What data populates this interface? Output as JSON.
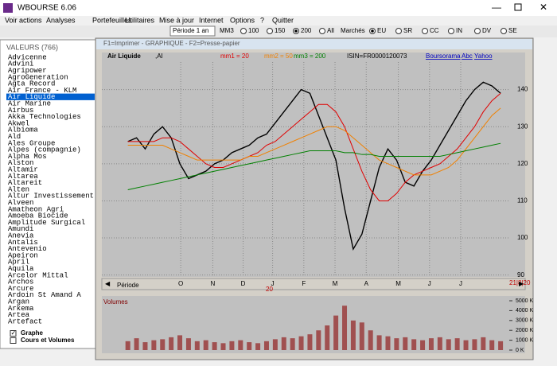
{
  "window": {
    "title": "WBOURSE 6.06"
  },
  "menu": [
    "Voir actions",
    "Analyses",
    "Portefeuilles",
    "Utilitaires",
    "Mise à jour",
    "Internet",
    "Options",
    "?",
    "Quitter"
  ],
  "toolbar": {
    "period": "Période 1 an",
    "mm_label": "MM3",
    "mm_options": [
      "100",
      "150",
      "200",
      "All"
    ],
    "mm_selected": 2,
    "market_label": "Marchés",
    "market_options": [
      "EU",
      "SR",
      "CC",
      "IN",
      "DV",
      "SE"
    ],
    "market_selected": 0
  },
  "sidebar": {
    "title": "VALEURS",
    "count": "(766)",
    "selected": 6,
    "items": [
      "Advicenne",
      "Advini",
      "Agripower",
      "AgroGeneration",
      "Agta Record",
      "Air France - KLM",
      "Air Liquide",
      "Air Marine",
      "Airbus",
      "Akka Technologies",
      "Akwel",
      "Albioma",
      "Ald",
      "Ales Groupe",
      "Alpes (compagnie)",
      "Alpha Mos",
      "Alston",
      "Altamir",
      "Altarea",
      "Altareit",
      "Alten",
      "Altur Investissement",
      "Alveen",
      "Amatheon Agri",
      "Amoeba Biocide",
      "Amplitude Surgical",
      "Amundi",
      "Anevia",
      "Antalis",
      "Antevenio",
      "Apeiron",
      "April",
      "Aquila",
      "Arcelor Mittal",
      "Archos",
      "Arcure",
      "Ardoin St Amand A",
      "Argan",
      "Arkema",
      "Artea",
      "Artefact"
    ],
    "checkboxes": [
      {
        "label": "Graphe",
        "checked": true
      },
      {
        "label": "Cours et Volumes",
        "checked": false
      }
    ]
  },
  "chart_window": {
    "title": "F1=Imprimer  -  GRAPHIQUE  -  F2=Presse-papier",
    "period_label": "Période",
    "date_label": "21|8|20",
    "year_label": "20"
  },
  "chart_data": [
    {
      "type": "line",
      "title": "Air Liquide",
      "ticker": ",AI",
      "isin": "ISIN=FR0000120073",
      "links": [
        "Boursorama",
        "Abc",
        "Yahoo"
      ],
      "xlim": [
        -3,
        44
      ],
      "xticks": [
        {
          "value": 6.1,
          "label": "O"
        },
        {
          "value": 9.8,
          "label": "N"
        },
        {
          "value": 13.3,
          "label": "D"
        },
        {
          "value": 16.7,
          "label": "J"
        },
        {
          "value": 20.3,
          "label": "F"
        },
        {
          "value": 23.9,
          "label": "M"
        },
        {
          "value": 27.5,
          "label": "A"
        },
        {
          "value": 31.2,
          "label": "M"
        },
        {
          "value": 34.8,
          "label": "J"
        },
        {
          "value": 38.4,
          "label": "J"
        }
      ],
      "ylim": [
        89.5,
        150
      ],
      "yticks": [
        90,
        100,
        110,
        120,
        130,
        140
      ],
      "grid": true,
      "series": [
        {
          "color": "#000000",
          "values": [
            126,
            127,
            124,
            128,
            130,
            127,
            120,
            116,
            117,
            118,
            120,
            121,
            123,
            124,
            125,
            127,
            128,
            131,
            134,
            137,
            140,
            139,
            133,
            127,
            121,
            108,
            97,
            101,
            110,
            119,
            124,
            121,
            115,
            114,
            118,
            121,
            125,
            129,
            133,
            137,
            140,
            142,
            141,
            139
          ]
        },
        {
          "name": "mm1 = 20",
          "color": "#e00000",
          "values": [
            126,
            126,
            126,
            126,
            127,
            127,
            126,
            124,
            122,
            120,
            119,
            119,
            120,
            121,
            122,
            123,
            125,
            126,
            128,
            130,
            132,
            134,
            136,
            136,
            134,
            130,
            124,
            118,
            113,
            110,
            110,
            112,
            115,
            117,
            118,
            119,
            120,
            122,
            124,
            127,
            130,
            134,
            137,
            139
          ]
        },
        {
          "name": "mm2 = 50",
          "color": "#f08000",
          "values": [
            125,
            125,
            125,
            125,
            125,
            124,
            123,
            122,
            121,
            121,
            121,
            121,
            121,
            121,
            122,
            122,
            123,
            124,
            125,
            126,
            127,
            128,
            129,
            130,
            130,
            129,
            127,
            125,
            123,
            121,
            120,
            119,
            118,
            117,
            117,
            117,
            118,
            119,
            121,
            124,
            127,
            130,
            133,
            135
          ]
        },
        {
          "name": "mm3 = 200",
          "color": "#008000",
          "values": [
            113,
            113.5,
            114,
            114.5,
            115,
            115.5,
            116,
            116.5,
            117,
            117.5,
            118,
            118.5,
            119,
            119.5,
            120,
            120.5,
            121,
            121.5,
            122,
            122.5,
            123,
            123.5,
            123.5,
            123.5,
            123.5,
            123,
            123,
            122.5,
            122.5,
            122,
            122,
            122,
            122,
            122,
            122,
            122,
            122,
            122.5,
            123,
            123.5,
            124,
            124.5,
            125,
            125.5
          ]
        }
      ]
    },
    {
      "type": "bar",
      "title": "Volumes",
      "color": "#a05050",
      "xlim": [
        -3,
        44
      ],
      "ylim": [
        0,
        5000
      ],
      "yticks": [
        {
          "value": 0,
          "label": "0 K"
        },
        {
          "value": 1000,
          "label": "1000 K"
        },
        {
          "value": 2000,
          "label": "2000 K"
        },
        {
          "value": 3000,
          "label": "3000 K"
        },
        {
          "value": 4000,
          "label": "4000 K"
        },
        {
          "value": 5000,
          "label": "5000 K"
        }
      ],
      "values": [
        900,
        1200,
        800,
        1000,
        1100,
        1300,
        1500,
        1200,
        900,
        1000,
        800,
        700,
        900,
        1000,
        800,
        700,
        900,
        1100,
        1300,
        1200,
        1400,
        1600,
        2000,
        2500,
        3500,
        4500,
        3000,
        2800,
        2000,
        1500,
        1400,
        1200,
        1300,
        1100,
        1000,
        1200,
        1300,
        1100,
        1200,
        1000,
        1100,
        1300,
        1000,
        900
      ]
    }
  ]
}
